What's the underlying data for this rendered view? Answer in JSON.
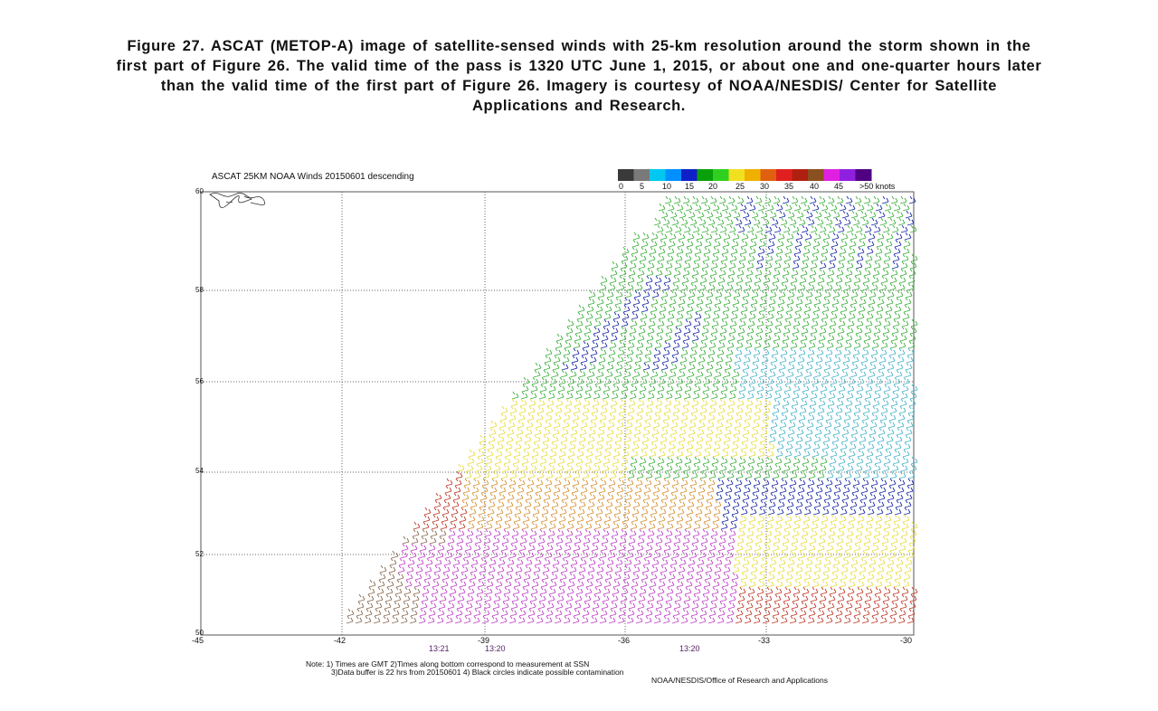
{
  "caption": {
    "line1": "Figure 27. ASCAT (METOP-A) image of satellite-sensed winds with 25-km resolution around the storm shown in the",
    "line2": "first part of Figure 26. The valid time of the pass is 1320 UTC June 1, 2015, or about one and one-quarter hours later",
    "line3": "than the valid time of the first part of Figure 26. Imagery is courtesy of NOAA/NESDIS/ Center for Satellite",
    "line4": "Applications and Research."
  },
  "figure": {
    "title": "ASCAT 25KM NOAA Winds 20150601 descending",
    "scale": {
      "labels": [
        "0",
        "5",
        "10",
        "15",
        "20",
        "25",
        "30",
        "35",
        "40",
        "45",
        ">50 knots"
      ],
      "colors": [
        "#3a3a3a",
        "#7a7a7a",
        "#00c8f0",
        "#0090ff",
        "#1020c8",
        "#0aa00a",
        "#30d020",
        "#f0e020",
        "#f0b000",
        "#e06010",
        "#e02020",
        "#b02010",
        "#8a5020",
        "#e020e0",
        "#9020e0",
        "#500080"
      ]
    },
    "lat_labels": [
      "60",
      "58",
      "56",
      "54",
      "52",
      "50"
    ],
    "lon_labels": [
      "-45",
      "-42",
      "-39",
      "-36",
      "-33",
      "-30"
    ],
    "times": [
      "13:21",
      "13:20",
      "13:20"
    ],
    "notes": {
      "line1": "Note: 1) Times are GMT 2)Times along bottom correspond to measurement at SSN",
      "line2": "3)Data buffer is 22 hrs from 20150601 4) Black circles indicate possible contamination",
      "line3": "NOAA/NESDIS/Office of Research and Applications"
    },
    "colors": {
      "blue": "#1a2aa8",
      "green": "#3cb03c",
      "cyan": "#46b4c8",
      "yellow": "#e8dc3c",
      "orange": "#d89030",
      "red": "#c03a28",
      "brown": "#8a6a50",
      "magenta": "#c040c8"
    }
  }
}
